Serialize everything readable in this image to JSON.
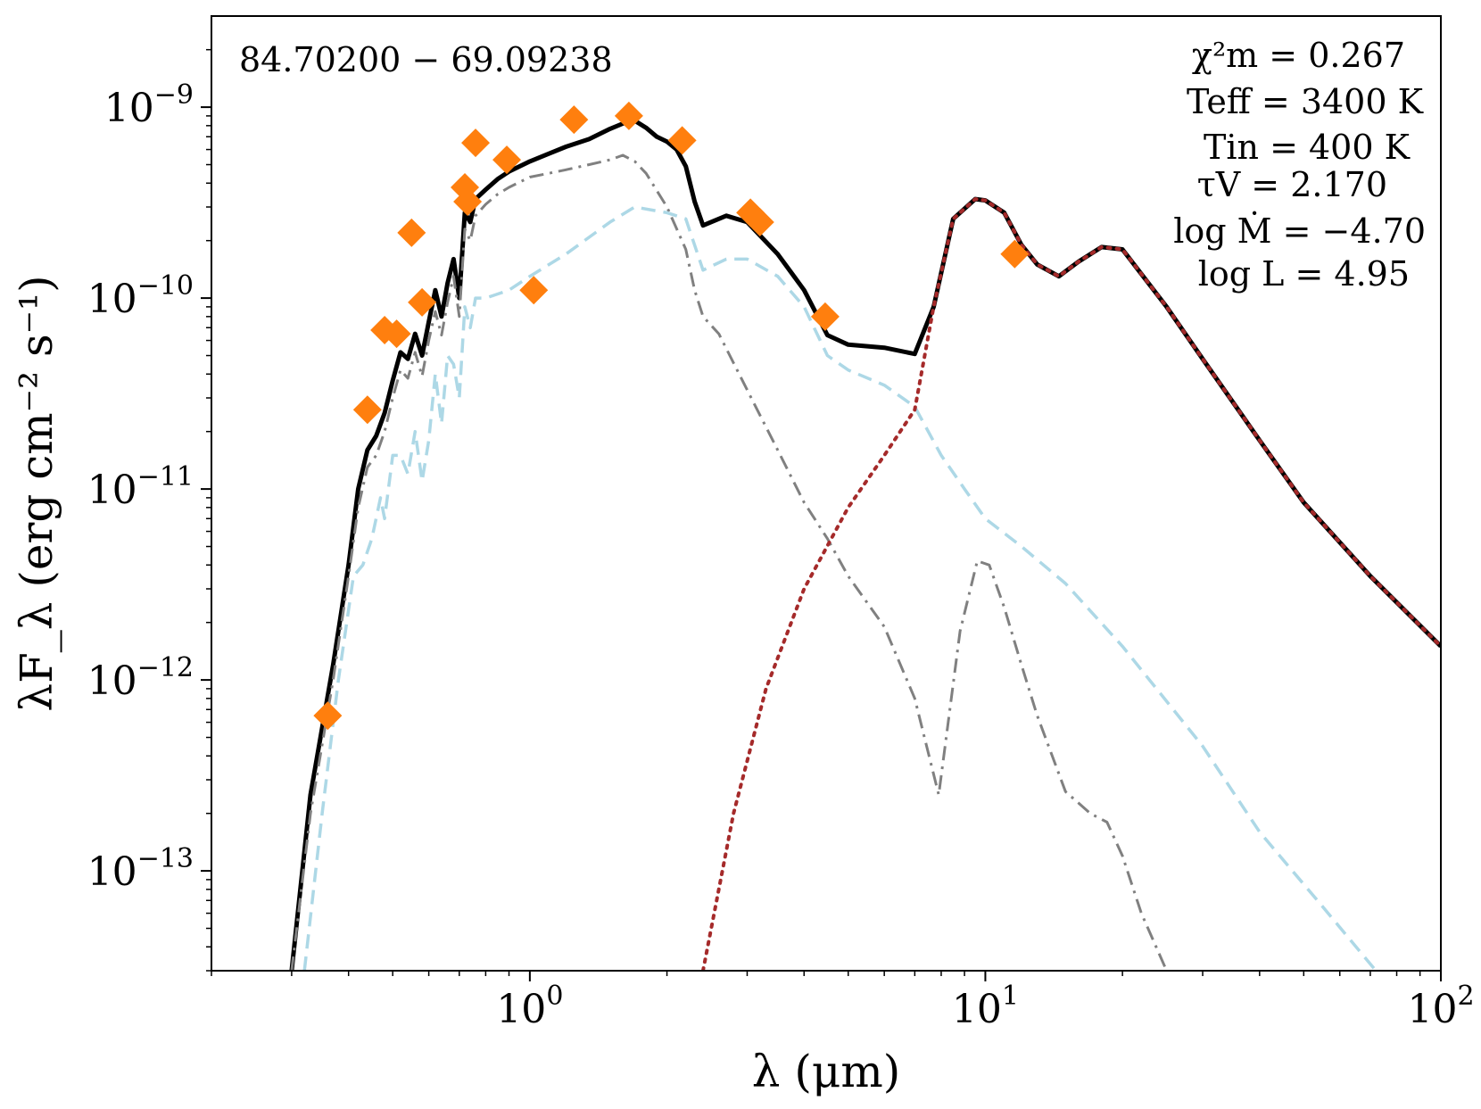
{
  "chart_data": {
    "type": "scatter",
    "title": "",
    "object_label": "84.70200 − 69.09238",
    "xlabel": "λ (μm)",
    "ylabel": "λF_λ (erg cm⁻² s⁻¹)",
    "xscale": "log",
    "yscale": "log",
    "xlim": [
      0.2,
      100
    ],
    "ylim": [
      3e-14,
      3e-09
    ],
    "x_ticks": [
      {
        "value": 1,
        "base": "10",
        "exp": "0"
      },
      {
        "value": 10,
        "base": "10",
        "exp": "1"
      },
      {
        "value": 100,
        "base": "10",
        "exp": "2"
      }
    ],
    "y_ticks": [
      {
        "value": 1e-13,
        "base": "10",
        "exp": "−13"
      },
      {
        "value": 1e-12,
        "base": "10",
        "exp": "−12"
      },
      {
        "value": 1e-11,
        "base": "10",
        "exp": "−11"
      },
      {
        "value": 1e-10,
        "base": "10",
        "exp": "−10"
      },
      {
        "value": 1e-09,
        "base": "10",
        "exp": "−9"
      }
    ],
    "fit_params": [
      "χ²m = 0.267",
      "Teff = 3400 K",
      "Tin = 400 K",
      "τV = 2.170",
      "log Ṁ = −4.70",
      "log L = 4.95"
    ],
    "grid": false,
    "legend": "none",
    "colors": {
      "observed": "#ff7f0e",
      "total": "#000000",
      "stellar_attenuated": "#808080",
      "scattered": "#add8e6",
      "dust_emission": "#a52a2a"
    },
    "observed": {
      "x": [
        0.36,
        0.44,
        0.48,
        0.51,
        0.55,
        0.58,
        0.72,
        0.73,
        0.76,
        0.89,
        1.02,
        1.25,
        1.65,
        2.16,
        3.05,
        3.2,
        4.45,
        11.6
      ],
      "y": [
        6.5e-13,
        2.6e-11,
        6.8e-11,
        6.5e-11,
        2.2e-10,
        9.5e-11,
        3.8e-10,
        3.2e-10,
        6.5e-10,
        5.3e-10,
        1.1e-10,
        8.6e-10,
        9e-10,
        6.7e-10,
        2.8e-10,
        2.5e-10,
        8e-11,
        1.7e-10
      ]
    },
    "series": [
      {
        "style": "solid",
        "x": [
          0.3,
          0.33,
          0.37,
          0.4,
          0.42,
          0.44,
          0.46,
          0.48,
          0.5,
          0.52,
          0.54,
          0.56,
          0.58,
          0.6,
          0.62,
          0.64,
          0.66,
          0.68,
          0.7,
          0.72,
          0.74,
          0.76,
          0.8,
          0.85,
          0.9,
          1.0,
          1.1,
          1.2,
          1.35,
          1.5,
          1.6,
          1.7,
          1.8,
          1.9,
          2.0,
          2.1,
          2.2,
          2.3,
          2.4,
          2.5,
          2.7,
          3.0,
          3.5,
          4.0,
          4.5,
          5.0,
          6.0,
          7.0,
          7.7,
          8.5,
          9.5,
          10.0,
          11.0,
          12.0,
          13.0,
          14.5,
          16.0,
          18.0,
          20.0,
          25.0,
          30.0,
          40.0,
          50.0,
          70.0,
          100.0
        ],
        "y": [
          3e-14,
          2.5e-13,
          1.2e-12,
          4e-12,
          1e-11,
          1.6e-11,
          1.9e-11,
          2.5e-11,
          3.7e-11,
          5.2e-11,
          4.8e-11,
          6.5e-11,
          5e-11,
          7.5e-11,
          1.1e-10,
          8e-11,
          1.2e-10,
          1.6e-10,
          1e-10,
          2.8e-10,
          2.5e-10,
          3.3e-10,
          3.7e-10,
          4.2e-10,
          4.6e-10,
          5.2e-10,
          5.7e-10,
          6.2e-10,
          6.8e-10,
          7.7e-10,
          8.2e-10,
          8.5e-10,
          7.8e-10,
          7e-10,
          6.6e-10,
          6e-10,
          4.9e-10,
          3.2e-10,
          2.4e-10,
          2.5e-10,
          2.7e-10,
          2.5e-10,
          1.7e-10,
          1.1e-10,
          6.4e-11,
          5.7e-11,
          5.5e-11,
          5.1e-11,
          9e-11,
          2.6e-10,
          3.3e-10,
          3.25e-10,
          2.8e-10,
          1.9e-10,
          1.5e-10,
          1.3e-10,
          1.55e-10,
          1.85e-10,
          1.8e-10,
          9e-11,
          4.8e-11,
          1.8e-11,
          8.5e-12,
          3.5e-12,
          1.5e-12
        ]
      },
      {
        "style": "dashdot",
        "x": [
          0.3,
          0.33,
          0.37,
          0.4,
          0.42,
          0.44,
          0.46,
          0.48,
          0.5,
          0.52,
          0.54,
          0.56,
          0.58,
          0.6,
          0.62,
          0.64,
          0.66,
          0.68,
          0.7,
          0.72,
          0.74,
          0.76,
          0.8,
          0.85,
          0.9,
          1.0,
          1.1,
          1.2,
          1.35,
          1.5,
          1.6,
          1.7,
          1.8,
          2.0,
          2.2,
          2.3,
          2.4,
          2.6,
          3.0,
          3.5,
          4.0,
          4.5,
          5.0,
          6.0,
          7.0,
          7.9,
          8.8,
          9.6,
          10.2,
          11.0,
          12.0,
          13.0,
          15.0,
          17.0,
          18.5,
          20.0,
          22.0,
          25.0
        ],
        "y": [
          3e-14,
          2e-13,
          1e-12,
          3.5e-12,
          8e-12,
          1.3e-11,
          1.5e-11,
          2e-11,
          3e-11,
          4.2e-11,
          3.8e-11,
          5.2e-11,
          3.9e-11,
          6e-11,
          8.5e-11,
          6.4e-11,
          9.5e-11,
          1.3e-10,
          8e-11,
          2.3e-10,
          2e-10,
          2.7e-10,
          3.1e-10,
          3.5e-10,
          3.8e-10,
          4.3e-10,
          4.5e-10,
          4.7e-10,
          5e-10,
          5.3e-10,
          5.6e-10,
          5.2e-10,
          4.5e-10,
          3e-10,
          1.8e-10,
          1.1e-10,
          8e-11,
          6.5e-11,
          3.3e-11,
          1.6e-11,
          8.5e-12,
          5.5e-12,
          3.5e-12,
          1.9e-12,
          8e-13,
          2.5e-13,
          1.8e-12,
          4.2e-12,
          4e-12,
          2.4e-12,
          1.2e-12,
          6.5e-13,
          2.6e-13,
          2e-13,
          1.8e-13,
          1.2e-13,
          6e-14,
          3e-14
        ]
      },
      {
        "style": "dashed",
        "x": [
          0.32,
          0.35,
          0.38,
          0.41,
          0.43,
          0.45,
          0.47,
          0.48,
          0.5,
          0.52,
          0.54,
          0.56,
          0.58,
          0.6,
          0.62,
          0.64,
          0.66,
          0.68,
          0.7,
          0.72,
          0.74,
          0.76,
          0.8,
          0.9,
          1.0,
          1.2,
          1.5,
          1.7,
          2.0,
          2.2,
          2.4,
          2.7,
          3.0,
          3.5,
          4.0,
          4.5,
          5.0,
          6.0,
          7.0,
          8.0,
          9.0,
          10.0,
          12.0,
          15.0,
          20.0,
          30.0,
          40.0,
          55.0,
          72.0
        ],
        "y": [
          3e-14,
          2e-13,
          1e-12,
          3.5e-12,
          4e-12,
          5.5e-12,
          9e-12,
          7e-12,
          1.5e-11,
          1.5e-11,
          1.2e-11,
          2e-11,
          1.1e-11,
          1.8e-11,
          4e-11,
          2.2e-11,
          5e-11,
          4.5e-11,
          3e-11,
          9e-11,
          7e-11,
          1e-10,
          1e-10,
          1.1e-10,
          1.3e-10,
          1.7e-10,
          2.5e-10,
          3e-10,
          2.8e-10,
          2.6e-10,
          1.4e-10,
          1.6e-10,
          1.6e-10,
          1.3e-10,
          9e-11,
          5e-11,
          4.2e-11,
          3.5e-11,
          2.7e-11,
          1.5e-11,
          1e-11,
          7e-12,
          5e-12,
          3.2e-12,
          1.5e-12,
          4.5e-13,
          1.6e-13,
          6.5e-14,
          3e-14
        ]
      },
      {
        "style": "dotted",
        "x": [
          2.4,
          2.8,
          3.3,
          4.0,
          5.0,
          6.0,
          7.0,
          7.7,
          8.5,
          9.5,
          10.0,
          11.0,
          12.0,
          13.0,
          14.5,
          16.0,
          18.0,
          20.0,
          25.0,
          30.0,
          40.0,
          50.0,
          70.0,
          100.0
        ],
        "y": [
          3e-14,
          2e-13,
          9e-13,
          3e-12,
          8e-12,
          1.5e-11,
          2.6e-11,
          9e-11,
          2.6e-10,
          3.3e-10,
          3.25e-10,
          2.8e-10,
          1.9e-10,
          1.5e-10,
          1.3e-10,
          1.55e-10,
          1.85e-10,
          1.8e-10,
          9e-11,
          4.8e-11,
          1.8e-11,
          8.5e-12,
          3.5e-12,
          1.5e-12
        ]
      }
    ]
  }
}
